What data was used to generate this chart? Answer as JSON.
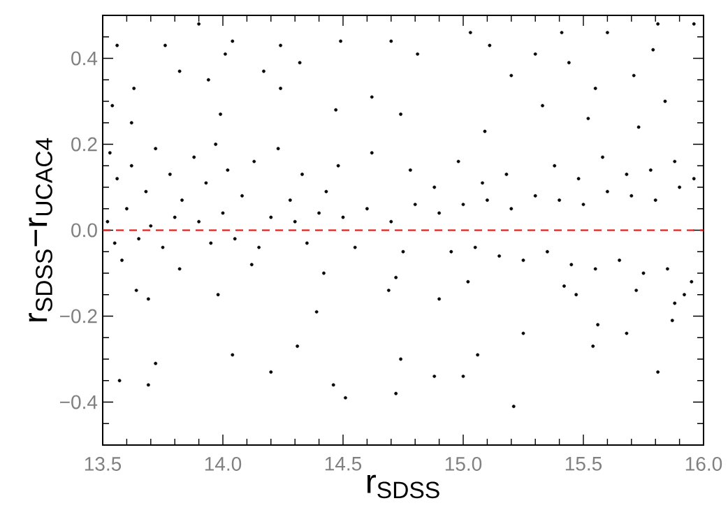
{
  "chart_data": {
    "type": "scatter",
    "xlabel": "r$_{SDSS}$",
    "ylabel": "r$_{SDSS}$−r$_{UCAC4}$",
    "xlim": [
      13.5,
      16.0
    ],
    "ylim": [
      -0.5,
      0.5
    ],
    "xticks": [
      13.5,
      {
        "value": 13.6,
        "label": null
      },
      {
        "value": 13.7,
        "label": null
      },
      {
        "value": 13.8,
        "label": null
      },
      {
        "value": 13.9,
        "label": null
      },
      {
        "value": 14.0,
        "label": "14.0"
      },
      {
        "value": 14.1,
        "label": null
      },
      {
        "value": 14.2,
        "label": null
      },
      {
        "value": 14.3,
        "label": null
      },
      {
        "value": 14.4,
        "label": null
      },
      14.5,
      {
        "value": 14.6,
        "label": null
      },
      {
        "value": 14.7,
        "label": null
      },
      {
        "value": 14.8,
        "label": null
      },
      {
        "value": 14.9,
        "label": null
      },
      {
        "value": 15.0,
        "label": "15.0"
      },
      {
        "value": 15.1,
        "label": null
      },
      {
        "value": 15.2,
        "label": null
      },
      {
        "value": 15.3,
        "label": null
      },
      {
        "value": 15.4,
        "label": null
      },
      15.5,
      {
        "value": 15.6,
        "label": null
      },
      {
        "value": 15.7,
        "label": null
      },
      {
        "value": 15.8,
        "label": null
      },
      {
        "value": 15.9,
        "label": null
      },
      {
        "value": 16.0,
        "label": "16.0"
      }
    ],
    "yticks": [
      {
        "value": -0.45,
        "label": null
      },
      {
        "value": -0.4,
        "label": "−0.4"
      },
      {
        "value": -0.35,
        "label": null
      },
      {
        "value": -0.3,
        "label": null
      },
      {
        "value": -0.25,
        "label": null
      },
      {
        "value": -0.2,
        "label": "−0.2"
      },
      {
        "value": -0.15,
        "label": null
      },
      {
        "value": -0.1,
        "label": null
      },
      {
        "value": -0.05,
        "label": null
      },
      {
        "value": 0.0,
        "label": "0.0"
      },
      {
        "value": 0.05,
        "label": null
      },
      {
        "value": 0.1,
        "label": null
      },
      {
        "value": 0.15,
        "label": null
      },
      0.2,
      {
        "value": 0.25,
        "label": null
      },
      {
        "value": 0.3,
        "label": null
      },
      {
        "value": 0.35,
        "label": null
      },
      0.4,
      {
        "value": 0.45,
        "label": null
      }
    ],
    "color": "#000000",
    "marker": "circle",
    "x": [
      13.52,
      13.55,
      13.6,
      13.65,
      13.7,
      13.75,
      13.8,
      13.9,
      13.95,
      14.0,
      14.05,
      14.15,
      14.2,
      14.3,
      14.35,
      14.4,
      14.5,
      14.55,
      14.6,
      14.7,
      14.75,
      14.8,
      14.9,
      14.95,
      15.0,
      15.05,
      15.1,
      15.15,
      15.2,
      15.25,
      15.3,
      15.35,
      15.4,
      15.45,
      15.5,
      15.55,
      15.6,
      15.65,
      15.7,
      15.75,
      15.8,
      15.85,
      15.9,
      15.95,
      13.53,
      13.56,
      13.62,
      13.68,
      13.72,
      13.78,
      13.83,
      13.88,
      13.93,
      13.97,
      14.02,
      14.08,
      14.13,
      14.23,
      14.28,
      14.33,
      14.43,
      14.48,
      14.62,
      14.78,
      14.88,
      14.98,
      15.08,
      15.18,
      15.38,
      15.48,
      15.58,
      15.68,
      15.78,
      15.88,
      15.96,
      13.58,
      13.82,
      14.12,
      14.42,
      14.72,
      15.02,
      15.42,
      15.72,
      15.92,
      13.56,
      13.76,
      13.9,
      14.04,
      14.24,
      14.49,
      14.01,
      14.32,
      13.82,
      14.17,
      13.63,
      13.94,
      14.24,
      13.54,
      14.47,
      13.99,
      13.62,
      15.6,
      15.81,
      15.41,
      15.96,
      15.03,
      15.11,
      14.7,
      15.3,
      15.79,
      15.44,
      14.81,
      15.2,
      15.71,
      15.55,
      14.62,
      15.33,
      15.84,
      14.74,
      15.52,
      15.09,
      15.73,
      13.64,
      13.69,
      13.72,
      13.69,
      13.57,
      14.04,
      14.2,
      14.31,
      14.46,
      14.51,
      14.39,
      13.98,
      14.74,
      14.72,
      14.88,
      15.0,
      15.21,
      15.06,
      15.25,
      15.54,
      15.68,
      15.81,
      15.56,
      15.87,
      15.88,
      15.47,
      14.9,
      14.69
    ],
    "values": [
      0.02,
      -0.03,
      0.05,
      -0.02,
      0.01,
      -0.04,
      0.03,
      0.02,
      -0.03,
      0.04,
      -0.02,
      -0.04,
      0.03,
      0.02,
      -0.03,
      0.04,
      0.03,
      -0.04,
      0.05,
      0.02,
      -0.05,
      0.06,
      0.04,
      -0.05,
      0.06,
      -0.04,
      0.07,
      -0.06,
      0.05,
      -0.07,
      0.08,
      -0.05,
      0.07,
      -0.08,
      0.06,
      -0.09,
      0.09,
      -0.07,
      0.08,
      -0.1,
      0.07,
      -0.09,
      0.1,
      -0.12,
      0.18,
      0.12,
      0.15,
      0.09,
      0.19,
      0.13,
      0.07,
      0.17,
      0.11,
      0.2,
      0.14,
      0.08,
      0.16,
      0.19,
      0.07,
      0.13,
      0.09,
      0.15,
      0.18,
      0.14,
      0.1,
      0.16,
      0.11,
      0.13,
      0.15,
      0.12,
      0.17,
      0.13,
      0.14,
      0.16,
      0.12,
      -0.07,
      -0.09,
      -0.08,
      -0.1,
      -0.11,
      -0.12,
      -0.13,
      -0.14,
      -0.15,
      0.43,
      0.43,
      0.48,
      0.44,
      0.43,
      0.44,
      0.41,
      0.39,
      0.37,
      0.37,
      0.33,
      0.35,
      0.33,
      0.29,
      0.28,
      0.27,
      0.25,
      0.46,
      0.48,
      0.46,
      0.48,
      0.46,
      0.43,
      0.44,
      0.41,
      0.42,
      0.39,
      0.41,
      0.36,
      0.36,
      0.33,
      0.31,
      0.29,
      0.3,
      0.27,
      0.26,
      0.23,
      0.24,
      -0.14,
      -0.16,
      -0.31,
      -0.36,
      -0.35,
      -0.29,
      -0.33,
      -0.27,
      -0.36,
      -0.39,
      -0.19,
      -0.15,
      -0.3,
      -0.38,
      -0.34,
      -0.34,
      -0.41,
      -0.29,
      -0.24,
      -0.27,
      -0.24,
      -0.33,
      -0.22,
      -0.21,
      -0.17,
      -0.15,
      -0.16,
      -0.14
    ],
    "ref_lines": [
      {
        "axis": "y",
        "value": 0.0,
        "color": "#ff0000",
        "line_style": "dashed"
      }
    ]
  }
}
